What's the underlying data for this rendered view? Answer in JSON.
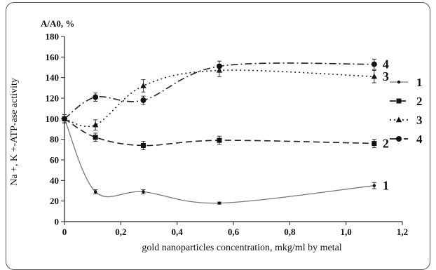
{
  "chart_data": {
    "type": "line",
    "xlabel": "gold nanoparticles concentration, mkg/ml by metal",
    "ylabel": "Na +, K +-ATP-ase activity",
    "ylabel_top": "A/A0, %",
    "xlim": [
      0,
      1.2
    ],
    "ylim": [
      0,
      180
    ],
    "x_ticks": [
      "0",
      "0,2",
      "0,4",
      "0,6",
      "0,8",
      "1,0",
      "1,2"
    ],
    "y_ticks": [
      "0",
      "20",
      "40",
      "60",
      "80",
      "100",
      "120",
      "140",
      "160",
      "180"
    ],
    "legend_placement": "right",
    "series": [
      {
        "name": "1",
        "x": [
          0,
          0.11,
          0.28,
          0.55,
          1.1
        ],
        "y": [
          100,
          29,
          29,
          18,
          35
        ],
        "err": [
          4,
          2,
          2,
          1,
          3
        ],
        "marker": "dot",
        "dash": "solid",
        "end_label": "1"
      },
      {
        "name": "2",
        "x": [
          0,
          0.11,
          0.28,
          0.55,
          1.1
        ],
        "y": [
          100,
          82,
          74,
          79,
          76
        ],
        "err": [
          4,
          4,
          4,
          4,
          4
        ],
        "marker": "square",
        "dash": "dashed",
        "end_label": "2"
      },
      {
        "name": "3",
        "x": [
          0,
          0.11,
          0.28,
          0.55,
          1.1
        ],
        "y": [
          100,
          94,
          132,
          147,
          141
        ],
        "err": [
          4,
          5,
          6,
          6,
          6
        ],
        "marker": "triangle",
        "dash": "dotted",
        "end_label": "3"
      },
      {
        "name": "4",
        "x": [
          0,
          0.11,
          0.28,
          0.55,
          1.1
        ],
        "y": [
          100,
          121,
          118,
          151,
          153
        ],
        "err": [
          4,
          4,
          4,
          5,
          5
        ],
        "marker": "circle",
        "dash": "dashdot",
        "end_label": "4"
      }
    ]
  }
}
